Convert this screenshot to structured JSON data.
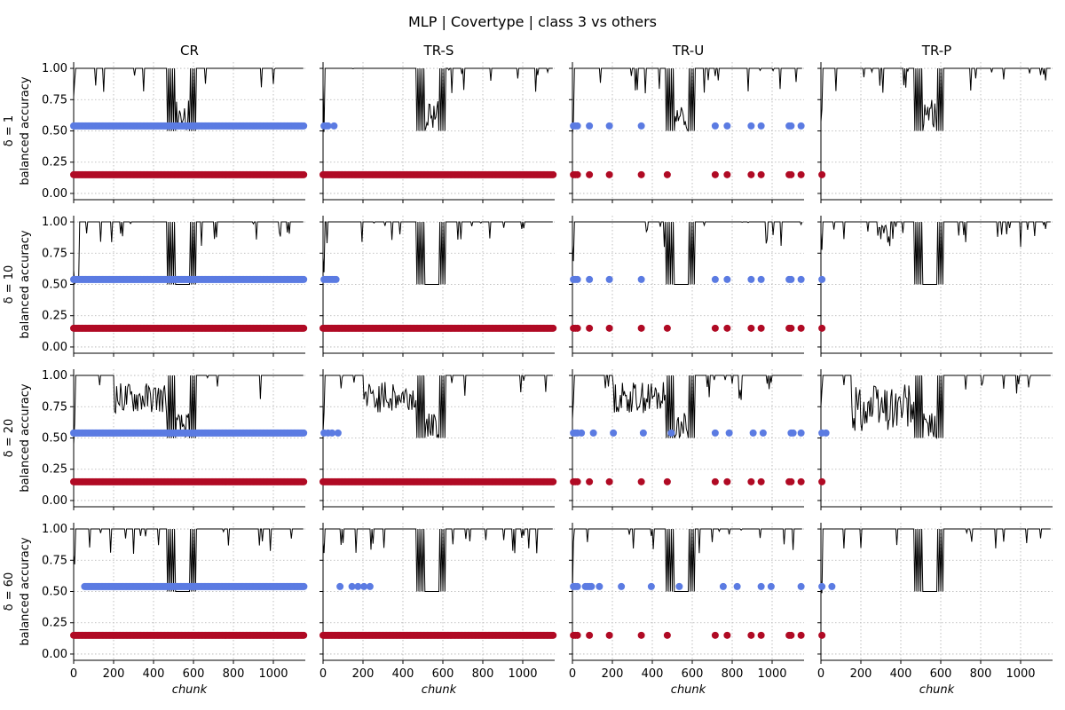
{
  "chart_data": {
    "type": "line",
    "title": "MLP | Covertype | class 3 vs others",
    "columns": [
      "CR",
      "TR-S",
      "TR-U",
      "TR-P"
    ],
    "row_labels": [
      "δ = 1",
      "δ = 10",
      "δ = 20",
      "δ = 60"
    ],
    "ylabel": "balanced accuracy",
    "xlabel": "chunk",
    "xlim": [
      0,
      1160
    ],
    "ylim": [
      -0.05,
      1.05
    ],
    "xticks": [
      0,
      200,
      400,
      600,
      800,
      1000
    ],
    "yticks": [
      0.0,
      0.25,
      0.5,
      0.75,
      1.0
    ],
    "ytick_labels": [
      "0.00",
      "0.25",
      "0.50",
      "0.75",
      "1.00"
    ],
    "grid": true,
    "colors": {
      "line": "#000000",
      "upper_markers": "#5b7be2",
      "lower_markers": "#b00a24"
    },
    "marker_levels": {
      "upper": 0.54,
      "lower": 0.15
    },
    "panels": [
      {
        "row": 0,
        "col": 0,
        "upper_x": "dense",
        "lower_x": "dense"
      },
      {
        "row": 0,
        "col": 1,
        "upper_x": [
          5,
          15,
          25,
          55
        ],
        "lower_x": "dense"
      },
      {
        "row": 0,
        "col": 2,
        "upper_x": [
          5,
          15,
          25,
          85,
          185,
          345,
          715,
          775,
          895,
          945,
          1085,
          1095,
          1145
        ],
        "lower_x": [
          5,
          15,
          25,
          85,
          185,
          345,
          475,
          715,
          775,
          895,
          945,
          1085,
          1095,
          1145
        ]
      },
      {
        "row": 0,
        "col": 3,
        "upper_x": [],
        "lower_x": [
          5
        ]
      },
      {
        "row": 1,
        "col": 0,
        "upper_x": "dense",
        "lower_x": "dense"
      },
      {
        "row": 1,
        "col": 1,
        "upper_x": [
          5,
          15,
          25,
          35,
          45,
          55,
          65
        ],
        "lower_x": "dense"
      },
      {
        "row": 1,
        "col": 2,
        "upper_x": [
          5,
          15,
          25,
          85,
          185,
          345,
          715,
          775,
          895,
          945,
          1085,
          1095,
          1145
        ],
        "lower_x": [
          5,
          15,
          25,
          85,
          185,
          345,
          475,
          715,
          775,
          895,
          945,
          1085,
          1095,
          1145
        ]
      },
      {
        "row": 1,
        "col": 3,
        "upper_x": [
          5
        ],
        "lower_x": [
          5
        ]
      },
      {
        "row": 2,
        "col": 0,
        "upper_x": "dense",
        "lower_x": "dense"
      },
      {
        "row": 2,
        "col": 1,
        "upper_x": [
          5,
          25,
          45,
          75
        ],
        "lower_x": "dense"
      },
      {
        "row": 2,
        "col": 2,
        "upper_x": [
          5,
          15,
          25,
          45,
          105,
          205,
          355,
          495,
          715,
          785,
          905,
          955,
          1095,
          1105,
          1145
        ],
        "lower_x": [
          5,
          15,
          25,
          85,
          185,
          345,
          475,
          715,
          775,
          895,
          945,
          1085,
          1095,
          1145
        ]
      },
      {
        "row": 2,
        "col": 3,
        "upper_x": [
          5,
          25
        ],
        "lower_x": [
          5
        ]
      },
      {
        "row": 3,
        "col": 0,
        "upper_x": "dense_from_55",
        "lower_x": "dense"
      },
      {
        "row": 3,
        "col": 1,
        "upper_x": [
          85,
          145,
          175,
          205,
          235
        ],
        "lower_x": "dense"
      },
      {
        "row": 3,
        "col": 2,
        "upper_x": [
          5,
          15,
          25,
          65,
          75,
          85,
          95,
          135,
          245,
          395,
          535,
          755,
          825,
          945,
          995,
          1145
        ],
        "lower_x": [
          5,
          15,
          25,
          85,
          185,
          345,
          475,
          715,
          775,
          895,
          945,
          1085,
          1095,
          1145
        ]
      },
      {
        "row": 3,
        "col": 3,
        "upper_x": [
          5,
          55
        ],
        "lower_x": [
          5
        ]
      }
    ]
  }
}
